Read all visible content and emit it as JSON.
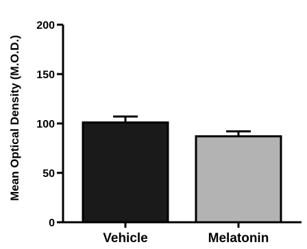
{
  "chart_data": {
    "type": "bar",
    "title": "",
    "xlabel": "",
    "ylabel": "Mean Optical Density (M.O.D.)",
    "categories": [
      "Vehicle",
      "Melatonin"
    ],
    "values": [
      101,
      87
    ],
    "error_upper": [
      107,
      92
    ],
    "ylim": [
      0,
      200
    ],
    "yticks": [
      "0",
      "50",
      "100",
      "150",
      "200"
    ],
    "colors": [
      "#1a1a1a",
      "#b3b3b3"
    ],
    "grid": false,
    "legend": "none"
  }
}
